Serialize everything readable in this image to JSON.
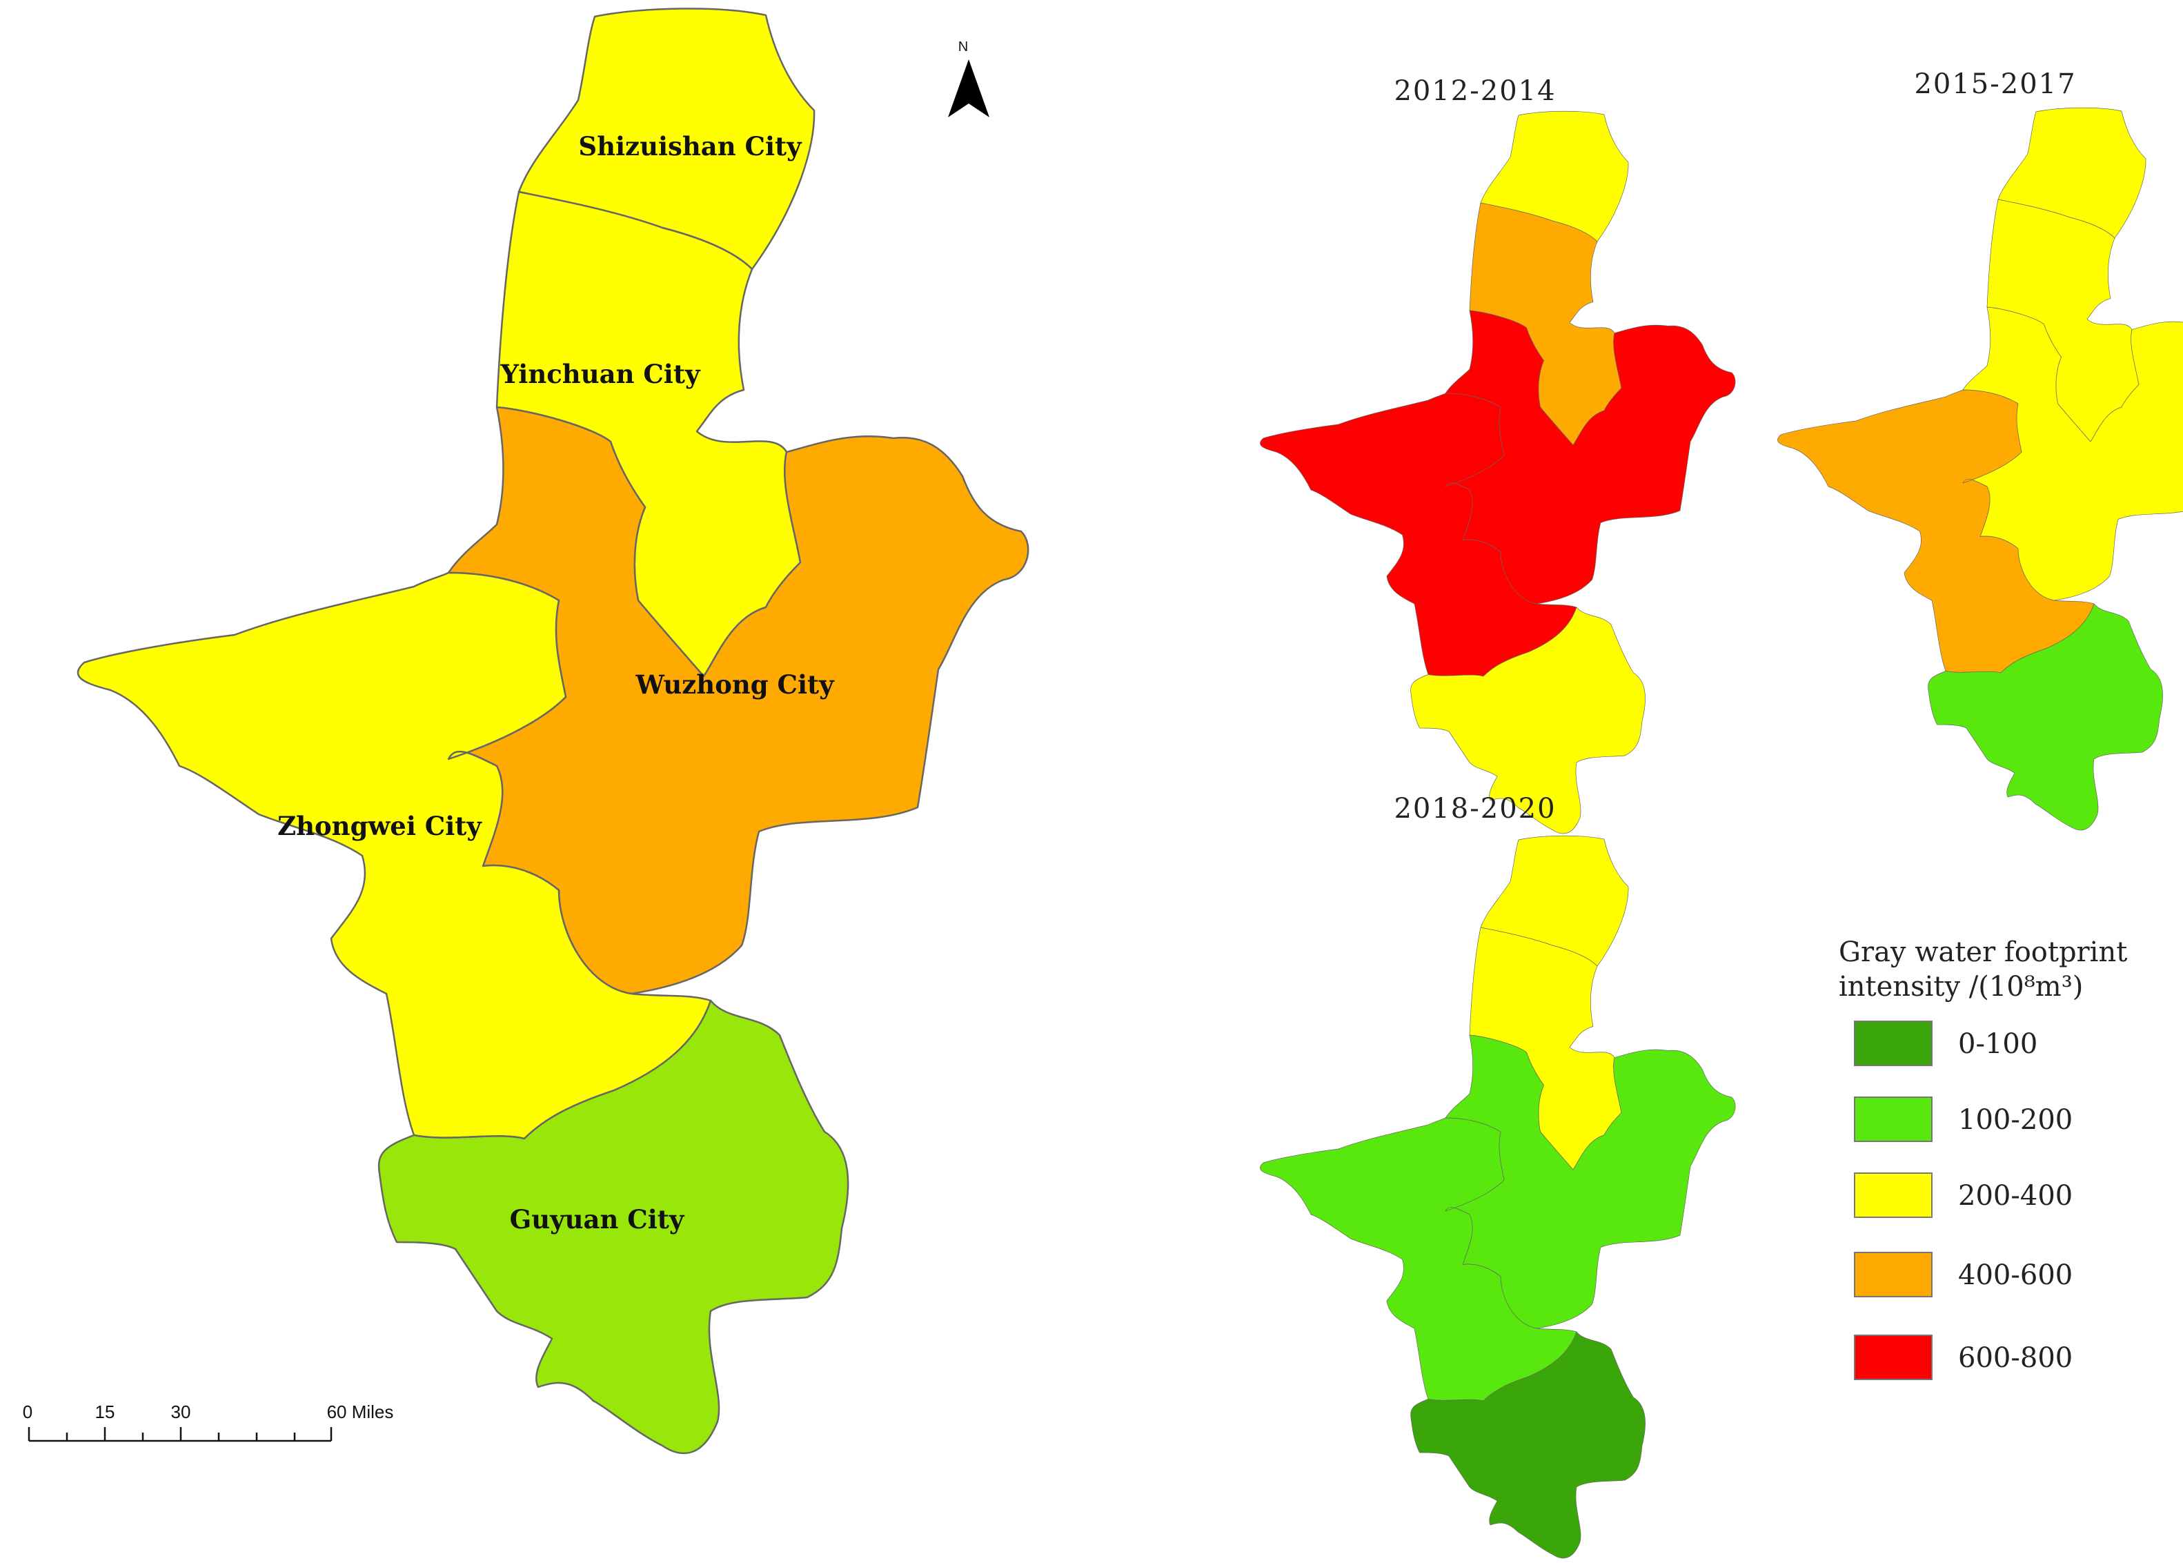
{
  "map": {
    "cities": [
      {
        "key": "shizuishan",
        "label": "Shizuishan City"
      },
      {
        "key": "yinchuan",
        "label": "Yinchuan City"
      },
      {
        "key": "wuzhong",
        "label": "Wuzhong City"
      },
      {
        "key": "zhongwei",
        "label": "Zhongwei City"
      },
      {
        "key": "guyuan",
        "label": "Guyuan City"
      }
    ],
    "main_classes": {
      "shizuishan": "200-400",
      "yinchuan": "200-400",
      "wuzhong": "400-600",
      "zhongwei": "200-400",
      "guyuan": "100-200"
    },
    "periods": [
      {
        "title": "2012-2014",
        "classes": {
          "shizuishan": "200-400",
          "yinchuan": "400-600",
          "wuzhong": "600-800",
          "zhongwei": "600-800",
          "guyuan": "200-400"
        }
      },
      {
        "title": "2015-2017",
        "classes": {
          "shizuishan": "200-400",
          "yinchuan": "200-400",
          "wuzhong": "200-400",
          "zhongwei": "400-600",
          "guyuan": "100-200"
        }
      },
      {
        "title": "2018-2020",
        "classes": {
          "shizuishan": "200-400",
          "yinchuan": "200-400",
          "wuzhong": "100-200",
          "zhongwei": "100-200",
          "guyuan": "0-100"
        }
      }
    ],
    "legend": {
      "title_line1": "Gray water footprint",
      "title_line2": "intensity /(10⁸m³)",
      "classes": [
        {
          "label": "0-100",
          "color": "#3aa60a"
        },
        {
          "label": "100-200",
          "color": "#59e80d"
        },
        {
          "label": "200-400",
          "color": "#ffff00"
        },
        {
          "label": "400-600",
          "color": "#ffaa00"
        },
        {
          "label": "600-800",
          "color": "#ff0000"
        }
      ]
    },
    "main_map_colors": {
      "100-200": "#99e60a"
    },
    "scale_bar": {
      "ticks": [
        "0",
        "15",
        "30",
        "60 Miles"
      ]
    },
    "north_arrow": {
      "label": "N",
      "icon": "north-arrow-icon"
    }
  }
}
